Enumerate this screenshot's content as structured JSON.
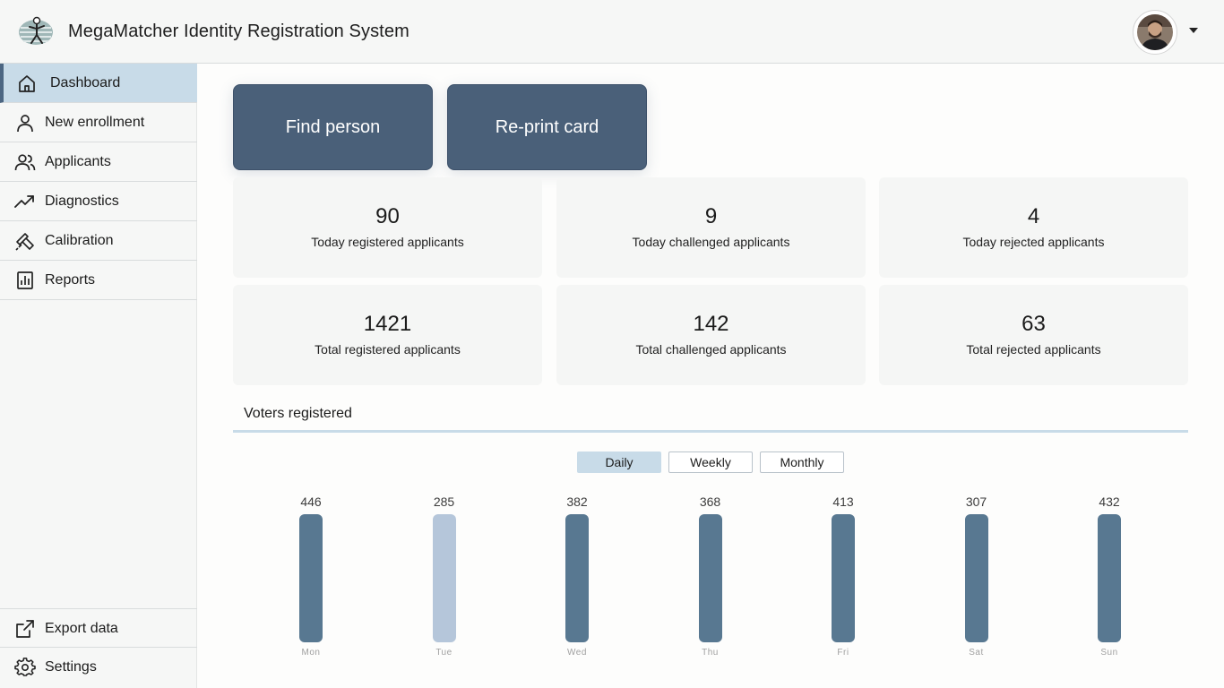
{
  "app": {
    "title": "MegaMatcher Identity Registration System"
  },
  "sidebar": {
    "items": [
      {
        "label": "Dashboard",
        "icon": "home-icon",
        "active": true
      },
      {
        "label": "New enrollment",
        "icon": "person-icon"
      },
      {
        "label": "Applicants",
        "icon": "people-icon"
      },
      {
        "label": "Diagnostics",
        "icon": "trending-up-icon"
      },
      {
        "label": "Calibration",
        "icon": "calibration-icon"
      },
      {
        "label": "Reports",
        "icon": "chart-icon"
      }
    ],
    "bottom": [
      {
        "label": "Export data",
        "icon": "export-icon"
      },
      {
        "label": "Settings",
        "icon": "gear-icon"
      }
    ]
  },
  "actions": {
    "find_person": "Find person",
    "reprint_card": "Re-print card"
  },
  "stats": [
    {
      "value": "90",
      "label": "Today registered applicants"
    },
    {
      "value": "9",
      "label": "Today challenged applicants"
    },
    {
      "value": "4",
      "label": "Today rejected applicants"
    },
    {
      "value": "1421",
      "label": "Total registered applicants"
    },
    {
      "value": "142",
      "label": "Total challenged applicants"
    },
    {
      "value": "63",
      "label": "Total rejected applicants"
    }
  ],
  "chart_section": {
    "title": "Voters registered",
    "toggles": [
      "Daily",
      "Weekly",
      "Monthly"
    ],
    "active_toggle": "Daily"
  },
  "chart_data": {
    "type": "bar",
    "categories": [
      "Mon",
      "Tue",
      "Wed",
      "Thu",
      "Fri",
      "Sat",
      "Sun"
    ],
    "values": [
      446,
      285,
      382,
      368,
      413,
      307,
      432
    ],
    "highlighted": "Tue",
    "colors": {
      "bar": "#587891",
      "highlight": "#b5c6da"
    }
  }
}
